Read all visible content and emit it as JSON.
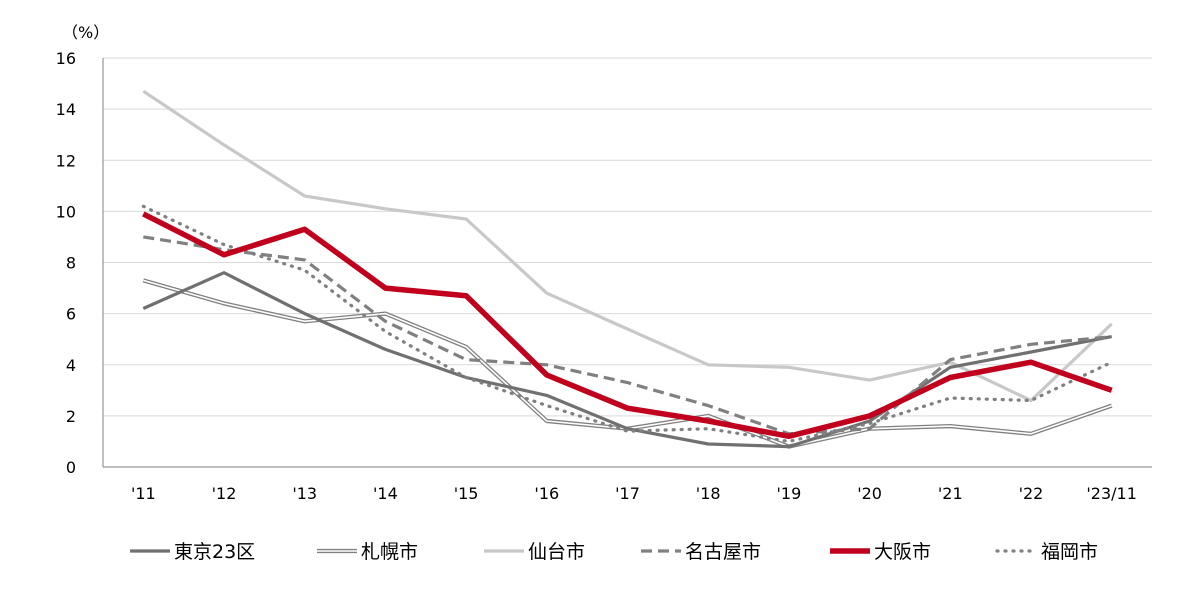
{
  "chart_data": {
    "type": "line",
    "unit_label": "（%）",
    "categories": [
      "'11",
      "'12",
      "'13",
      "'14",
      "'15",
      "'16",
      "'17",
      "'18",
      "'19",
      "'20",
      "'21",
      "'22",
      "'23/11"
    ],
    "ylim": [
      0,
      16
    ],
    "yticks": [
      0,
      2,
      4,
      6,
      8,
      10,
      12,
      14,
      16
    ],
    "grid": true,
    "legend_position": "bottom",
    "series": [
      {
        "name": "東京23区",
        "style": "solid-thick",
        "color": "#707070",
        "values": [
          6.2,
          7.6,
          6.0,
          4.6,
          3.5,
          2.8,
          1.5,
          0.9,
          0.8,
          1.8,
          3.9,
          4.5,
          5.1
        ]
      },
      {
        "name": "札幌市",
        "style": "double",
        "color": "#808080",
        "values": [
          7.3,
          6.4,
          5.7,
          6.0,
          4.7,
          1.8,
          1.5,
          2.0,
          0.8,
          1.5,
          1.6,
          1.3,
          2.4
        ]
      },
      {
        "name": "仙台市",
        "style": "solid-light",
        "color": "#c8c8c8",
        "values": [
          14.7,
          12.6,
          10.6,
          10.1,
          9.7,
          6.8,
          5.4,
          4.0,
          3.9,
          3.4,
          4.1,
          2.6,
          5.6
        ]
      },
      {
        "name": "名古屋市",
        "style": "dashed",
        "color": "#808080",
        "values": [
          9.0,
          8.5,
          8.1,
          5.7,
          4.2,
          4.0,
          3.3,
          2.4,
          1.3,
          1.5,
          4.2,
          4.8,
          5.1
        ]
      },
      {
        "name": "大阪市",
        "style": "solid-bold",
        "color": "#c0001c",
        "values": [
          9.9,
          8.3,
          9.3,
          7.0,
          6.7,
          3.6,
          2.3,
          1.8,
          1.2,
          2.0,
          3.5,
          4.1,
          3.0
        ]
      },
      {
        "name": "福岡市",
        "style": "dotted",
        "color": "#808080",
        "values": [
          10.2,
          8.7,
          7.7,
          5.3,
          3.5,
          2.4,
          1.4,
          1.5,
          1.0,
          1.7,
          2.7,
          2.6,
          4.1
        ]
      }
    ]
  }
}
